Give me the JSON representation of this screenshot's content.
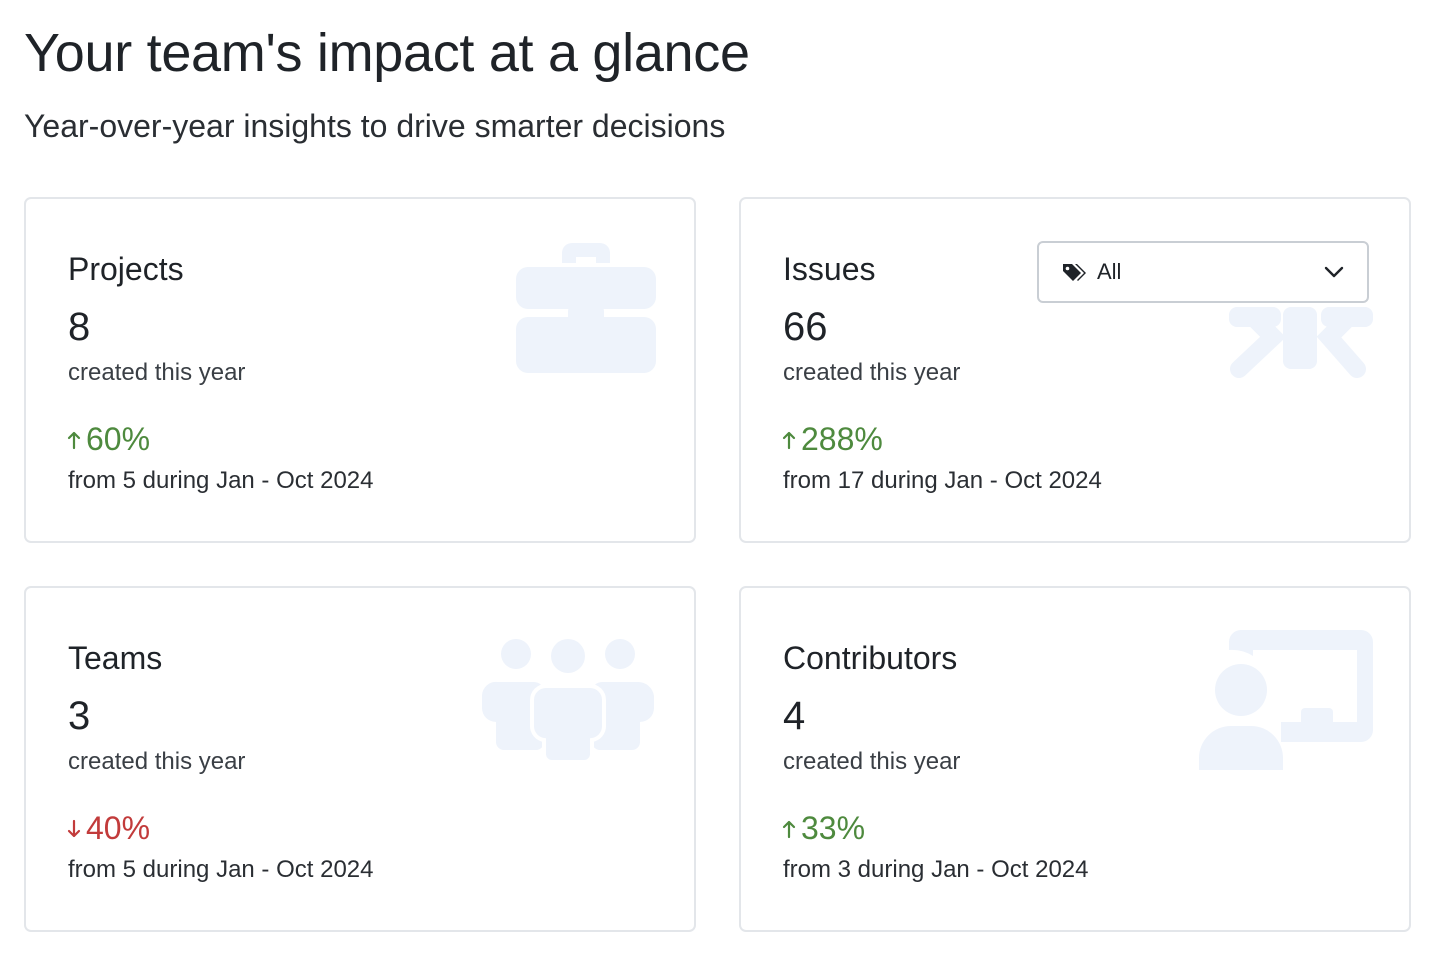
{
  "header": {
    "title": "Your team's impact at a glance",
    "subtitle": "Year-over-year insights to drive smarter decisions"
  },
  "cards": [
    {
      "label": "Projects",
      "value": "8",
      "caption": "created this year",
      "change": "60%",
      "direction": "up",
      "footnote": "from 5 during Jan - Oct 2024",
      "icon": "briefcase-icon"
    },
    {
      "label": "Issues",
      "value": "66",
      "caption": "created this year",
      "change": "288%",
      "direction": "up",
      "footnote": "from 17 during Jan - Oct 2024",
      "icon": "bug-icon",
      "filter": {
        "value": "All",
        "icon": "tags-icon"
      }
    },
    {
      "label": "Teams",
      "value": "3",
      "caption": "created this year",
      "change": "40%",
      "direction": "down",
      "footnote": "from 5 during Jan - Oct 2024",
      "icon": "users-icon"
    },
    {
      "label": "Contributors",
      "value": "4",
      "caption": "created this year",
      "change": "33%",
      "direction": "up",
      "footnote": "from 3 during Jan - Oct 2024",
      "icon": "presenter-icon"
    }
  ],
  "colors": {
    "up": "#4e8a3e",
    "down": "#c23b3b",
    "icon_watermark": "#eef3fb"
  }
}
